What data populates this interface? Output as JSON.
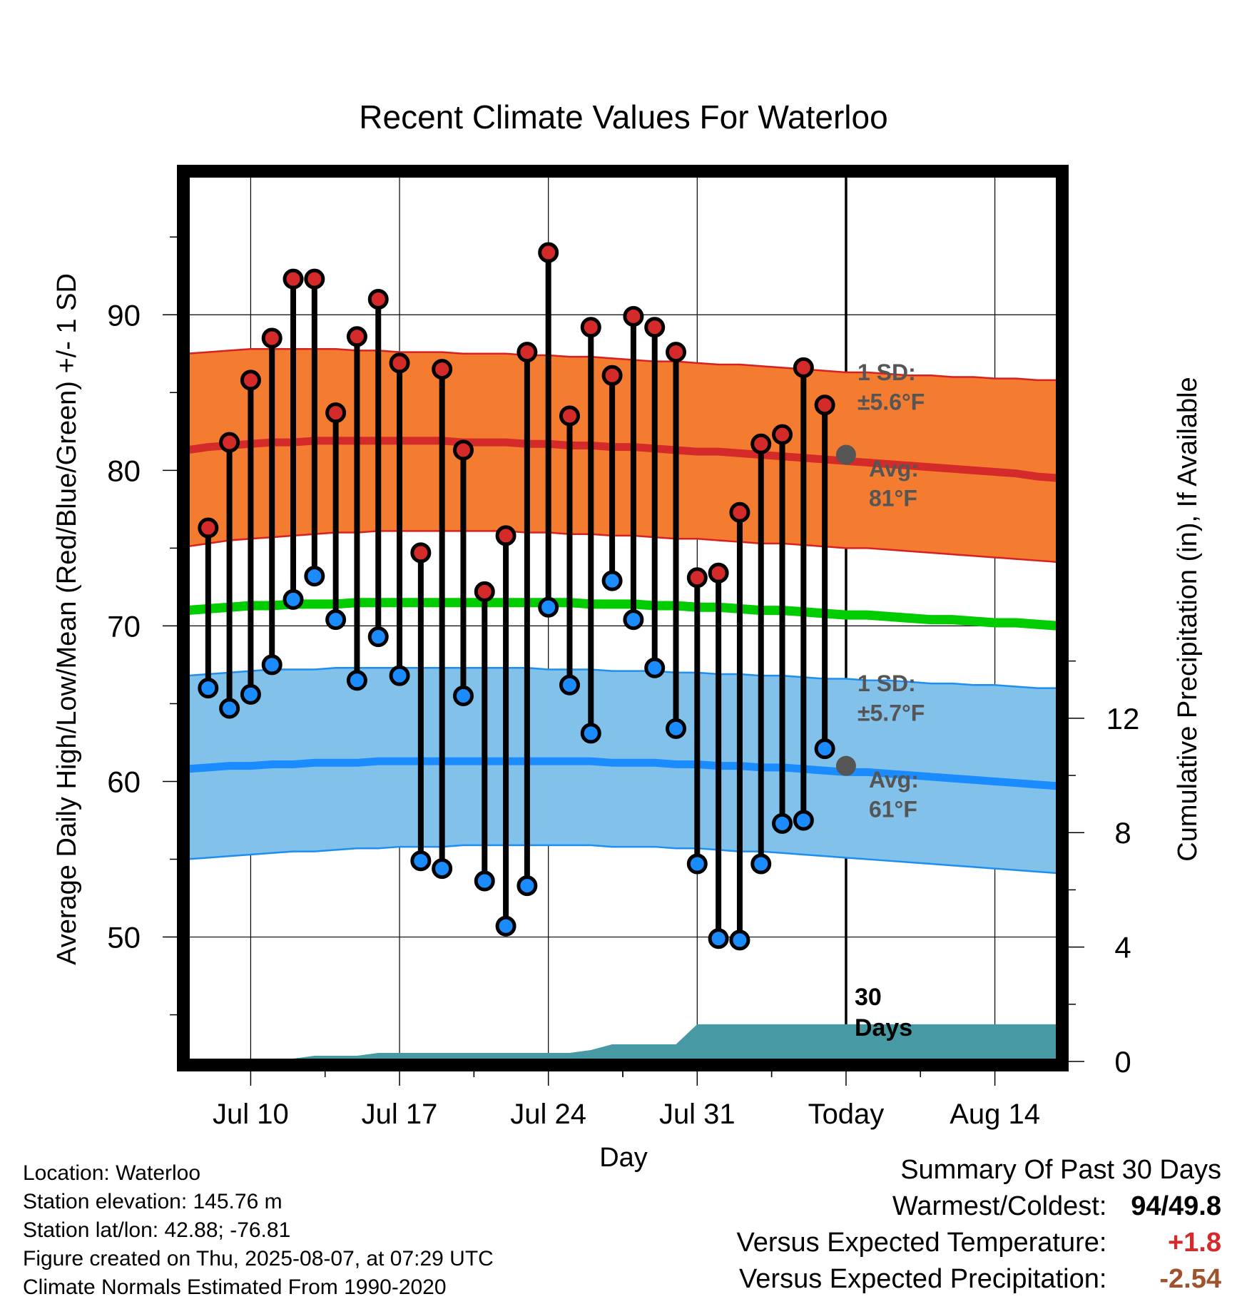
{
  "chart_data": {
    "type": "line",
    "title": "Recent Climate Values For Waterloo",
    "xlabel": "Day",
    "ylabel_left": "Average Daily High/Low/Mean (Red/Blue/Green) +/- 1 SD",
    "ylabel_right": "Cumulative Precipitation (in), If Available",
    "ylim_left": [
      42,
      99
    ],
    "ylim_right": [
      0,
      31
    ],
    "left_ticks": [
      "50",
      "60",
      "70",
      "80",
      "90"
    ],
    "right_ticks": [
      "0",
      "4",
      "8",
      "12"
    ],
    "x_ticks": [
      "Jul 10",
      "Jul 17",
      "Jul 24",
      "Jul 31",
      "Today",
      "Aug 14"
    ],
    "x_dates": [
      "2025-07-07",
      "2025-07-08",
      "2025-07-09",
      "2025-07-10",
      "2025-07-11",
      "2025-07-12",
      "2025-07-13",
      "2025-07-14",
      "2025-07-15",
      "2025-07-16",
      "2025-07-17",
      "2025-07-18",
      "2025-07-19",
      "2025-07-20",
      "2025-07-21",
      "2025-07-22",
      "2025-07-23",
      "2025-07-24",
      "2025-07-25",
      "2025-07-26",
      "2025-07-27",
      "2025-07-28",
      "2025-07-29",
      "2025-07-30",
      "2025-07-31",
      "2025-08-01",
      "2025-08-02",
      "2025-08-03",
      "2025-08-04",
      "2025-08-05",
      "2025-08-06",
      "2025-08-07",
      "2025-08-08",
      "2025-08-09",
      "2025-08-10",
      "2025-08-11",
      "2025-08-12",
      "2025-08-13",
      "2025-08-14",
      "2025-08-15",
      "2025-08-16",
      "2025-08-17"
    ],
    "series": [
      {
        "name": "High",
        "values": [
          76.3,
          81.8,
          85.8,
          88.5,
          92.3,
          92.3,
          83.7,
          88.6,
          91.0,
          86.9,
          74.7,
          86.5,
          81.3,
          72.2,
          75.8,
          87.6,
          94.0,
          83.5,
          89.2,
          86.1,
          89.9,
          89.2,
          87.6,
          73.1,
          73.4,
          77.3,
          81.7,
          82.3,
          86.6,
          84.2
        ]
      },
      {
        "name": "Low",
        "values": [
          66.0,
          64.7,
          65.6,
          67.5,
          71.7,
          73.2,
          70.4,
          66.5,
          69.3,
          66.8,
          54.9,
          54.4,
          65.5,
          53.6,
          50.7,
          53.3,
          71.2,
          66.2,
          63.1,
          72.9,
          70.4,
          67.3,
          63.4,
          54.7,
          49.9,
          49.8,
          54.7,
          57.3,
          57.5,
          62.1
        ]
      },
      {
        "name": "Avg High",
        "values": [
          81.3,
          81.5,
          81.6,
          81.7,
          81.8,
          81.8,
          81.9,
          81.9,
          81.9,
          81.9,
          81.9,
          81.9,
          81.9,
          81.8,
          81.8,
          81.8,
          81.7,
          81.7,
          81.6,
          81.6,
          81.5,
          81.5,
          81.4,
          81.3,
          81.2,
          81.2,
          81.1,
          81.0,
          80.9,
          80.8,
          80.7,
          80.6,
          80.5,
          80.4,
          80.3,
          80.2,
          80.1,
          80.0,
          79.9,
          79.8,
          79.6,
          79.5
        ]
      },
      {
        "name": "Avg High +1 SD",
        "values": [
          87.5,
          87.6,
          87.7,
          87.8,
          87.8,
          87.8,
          87.8,
          87.8,
          87.7,
          87.7,
          87.6,
          87.6,
          87.6,
          87.5,
          87.5,
          87.5,
          87.4,
          87.4,
          87.3,
          87.3,
          87.2,
          87.1,
          87.0,
          87.0,
          86.9,
          86.8,
          86.8,
          86.7,
          86.6,
          86.5,
          86.4,
          86.3,
          86.3,
          86.2,
          86.1,
          86.1,
          86.0,
          86.0,
          85.9,
          85.9,
          85.8,
          85.8
        ]
      },
      {
        "name": "Avg High -1 SD",
        "values": [
          75.1,
          75.3,
          75.5,
          75.6,
          75.7,
          75.8,
          75.9,
          76.0,
          76.0,
          76.1,
          76.1,
          76.1,
          76.1,
          76.1,
          76.1,
          76.1,
          76.0,
          76.0,
          75.9,
          75.9,
          75.8,
          75.8,
          75.7,
          75.6,
          75.6,
          75.5,
          75.4,
          75.3,
          75.3,
          75.2,
          75.1,
          75.0,
          75.0,
          74.9,
          74.8,
          74.7,
          74.6,
          74.5,
          74.4,
          74.3,
          74.2,
          74.1
        ]
      },
      {
        "name": "Avg Mean",
        "values": [
          71.0,
          71.1,
          71.2,
          71.3,
          71.3,
          71.4,
          71.4,
          71.4,
          71.5,
          71.5,
          71.5,
          71.5,
          71.5,
          71.5,
          71.5,
          71.5,
          71.5,
          71.5,
          71.5,
          71.4,
          71.4,
          71.4,
          71.3,
          71.3,
          71.2,
          71.2,
          71.1,
          71.0,
          71.0,
          70.9,
          70.8,
          70.7,
          70.7,
          70.6,
          70.5,
          70.4,
          70.4,
          70.3,
          70.2,
          70.2,
          70.1,
          70.0
        ]
      },
      {
        "name": "Avg Low",
        "values": [
          60.8,
          60.9,
          61.0,
          61.0,
          61.1,
          61.1,
          61.2,
          61.2,
          61.2,
          61.3,
          61.3,
          61.3,
          61.3,
          61.3,
          61.3,
          61.3,
          61.3,
          61.3,
          61.3,
          61.3,
          61.2,
          61.2,
          61.2,
          61.1,
          61.1,
          61.0,
          61.0,
          60.9,
          60.9,
          60.8,
          60.7,
          60.6,
          60.6,
          60.5,
          60.4,
          60.3,
          60.2,
          60.1,
          60.0,
          59.9,
          59.8,
          59.7
        ]
      },
      {
        "name": "Avg Low +1 SD",
        "values": [
          66.8,
          66.9,
          67.0,
          67.1,
          67.2,
          67.2,
          67.2,
          67.3,
          67.3,
          67.3,
          67.3,
          67.3,
          67.3,
          67.3,
          67.3,
          67.3,
          67.3,
          67.2,
          67.2,
          67.2,
          67.1,
          67.1,
          67.1,
          67.0,
          67.0,
          66.9,
          66.9,
          66.8,
          66.8,
          66.7,
          66.6,
          66.6,
          66.5,
          66.5,
          66.4,
          66.3,
          66.3,
          66.2,
          66.2,
          66.1,
          66.0,
          66.0
        ]
      },
      {
        "name": "Avg Low -1 SD",
        "values": [
          55.0,
          55.1,
          55.2,
          55.3,
          55.4,
          55.5,
          55.5,
          55.6,
          55.7,
          55.7,
          55.8,
          55.8,
          55.8,
          55.9,
          55.9,
          55.9,
          55.9,
          55.9,
          55.9,
          55.9,
          55.8,
          55.8,
          55.8,
          55.7,
          55.7,
          55.6,
          55.5,
          55.5,
          55.4,
          55.3,
          55.2,
          55.1,
          55.0,
          54.9,
          54.8,
          54.7,
          54.6,
          54.5,
          54.4,
          54.3,
          54.2,
          54.1
        ]
      },
      {
        "name": "Cumulative Precipitation",
        "values": [
          0,
          0,
          0,
          0,
          0,
          0.1,
          0.2,
          0.2,
          0.2,
          0.3,
          0.3,
          0.3,
          0.3,
          0.3,
          0.3,
          0.3,
          0.3,
          0.3,
          0.3,
          0.4,
          0.6,
          0.6,
          0.6,
          0.6,
          1.3,
          1.3,
          1.3,
          1.3,
          1.3,
          1.3,
          1.3,
          1.3,
          1.3,
          1.3,
          1.3,
          1.3,
          1.3,
          1.3,
          1.3,
          1.3,
          1.3,
          1.3
        ]
      }
    ],
    "annotations": {
      "today_marker": {
        "label_line1": "30",
        "label_line2": "Days"
      },
      "high_sd": {
        "line1": "1 SD:",
        "line2": "±5.6°F"
      },
      "high_avg": {
        "line1": "Avg:",
        "line2": "81°F",
        "value": 81
      },
      "low_sd": {
        "line1": "1 SD:",
        "line2": "±5.7°F"
      },
      "low_avg": {
        "line1": "Avg:",
        "line2": "61°F",
        "value": 61
      }
    },
    "colors": {
      "high_band": "#f47c30",
      "high_band_edge": "#d92020",
      "high_avg_line": "#d42a2a",
      "mean_line": "#00cc00",
      "low_band": "#82c2ea",
      "low_band_edge": "#1e8ef0",
      "low_avg_line": "#1a8cff",
      "precip": "#479aa3",
      "high_dot": "#d42a2a",
      "low_dot": "#1a8cff",
      "marker_dot": "#555555",
      "annotation_text": "#555555"
    },
    "grid": true
  },
  "info": {
    "location": "Location: Waterloo",
    "elevation": "Station elevation: 145.76 m",
    "latlon": "Station lat/lon: 42.88; -76.81",
    "created": "Figure created on Thu, 2025-08-07, at 07:29 UTC",
    "normals": "Climate Normals Estimated From 1990-2020"
  },
  "summary": {
    "title": "Summary Of Past 30 Days",
    "warmest_label": "Warmest/Coldest:",
    "warmest_high": "94",
    "warmest_sep": "/",
    "warmest_low": "49.8",
    "temp_label": "Versus Expected Temperature:",
    "temp_value": "+1.8",
    "precip_label": "Versus Expected Precipitation:",
    "precip_value": "-2.54",
    "temp_color": "#d42a2a",
    "precip_color": "#a0522d"
  }
}
